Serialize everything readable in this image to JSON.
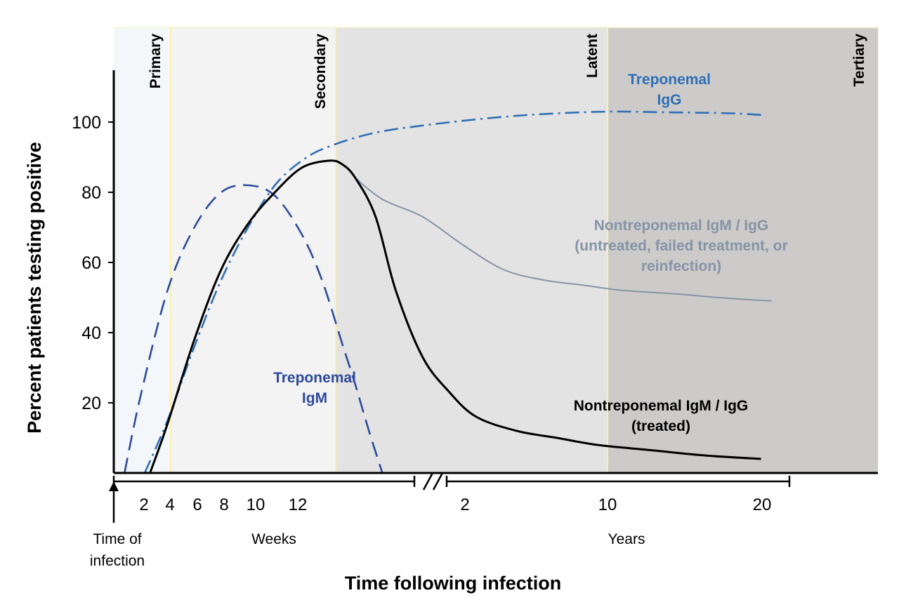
{
  "chart_data": {
    "type": "line",
    "ylabel": "Percent patients testing positive",
    "xlabel": "Time following infection",
    "y_ticks": [
      "20",
      "40",
      "60",
      "80",
      "100"
    ],
    "ylim": [
      0,
      115
    ],
    "x_axis": {
      "origin_label": "Time of infection",
      "weeks_label": "Weeks",
      "years_label": "Years",
      "week_ticks": [
        "2",
        "4",
        "6",
        "8",
        "10",
        "12"
      ],
      "year_ticks": [
        "2",
        "10",
        "20"
      ],
      "axis_break": true
    },
    "stages": [
      {
        "name": "Primary",
        "start_weeks": 0,
        "end_weeks": 4,
        "color": "#f4f7f9"
      },
      {
        "name": "Secondary",
        "start_weeks": 4,
        "end_weeks": 14,
        "color": "#f3f3f3"
      },
      {
        "name": "Latent",
        "start_weeks": 14,
        "end_years": 10,
        "color": "#e3e3e3"
      },
      {
        "name": "Tertiary",
        "start_years": 10,
        "end_years": 20,
        "color": "#cccbca"
      }
    ],
    "series": [
      {
        "name": "Treponemal IgM",
        "label_lines": [
          "Treponemal",
          "IgM"
        ],
        "color": "#2d4a9b",
        "style": "dashed",
        "points": [
          [
            0.8,
            0
          ],
          [
            2,
            22
          ],
          [
            4,
            52
          ],
          [
            6,
            70
          ],
          [
            8,
            80
          ],
          [
            10,
            82
          ],
          [
            12,
            79
          ],
          [
            14,
            68
          ],
          [
            15.5,
            55
          ],
          [
            17,
            37
          ],
          [
            18,
            25
          ],
          [
            19,
            12
          ],
          [
            20,
            0
          ]
        ]
      },
      {
        "name": "Treponemal IgG",
        "label_lines": [
          "Treponemal",
          "IgG"
        ],
        "color": "#2f6fb5",
        "style": "dashdot",
        "points": [
          [
            2.3,
            0
          ],
          [
            4,
            15
          ],
          [
            6,
            36
          ],
          [
            8,
            55
          ],
          [
            10,
            70
          ],
          [
            12,
            82
          ],
          [
            14,
            89
          ],
          [
            16,
            93
          ],
          [
            19.5,
            97
          ],
          [
            24,
            99.5
          ],
          [
            29,
            101.5
          ],
          [
            33,
            102.5
          ],
          [
            37,
            103
          ],
          [
            41,
            102.8
          ],
          [
            46,
            102.5
          ],
          [
            48.3,
            102
          ]
        ]
      },
      {
        "name": "Nontreponemal IgM / IgG (treated)",
        "label_lines": [
          "Nontreponemal IgM / IgG",
          "(treated)"
        ],
        "color": "#000000",
        "style": "solid",
        "points": [
          [
            2.7,
            0
          ],
          [
            4,
            14
          ],
          [
            6,
            38
          ],
          [
            8,
            58
          ],
          [
            10,
            71
          ],
          [
            12,
            80
          ],
          [
            14,
            87
          ],
          [
            16,
            89
          ],
          [
            17,
            88
          ],
          [
            18,
            84
          ],
          [
            19.5,
            73
          ],
          [
            21,
            52
          ],
          [
            23,
            33
          ],
          [
            25,
            23
          ],
          [
            27,
            16
          ],
          [
            30,
            12
          ],
          [
            33,
            10
          ],
          [
            36,
            8
          ],
          [
            40,
            6.5
          ],
          [
            44,
            5
          ],
          [
            48.2,
            4
          ]
        ]
      },
      {
        "name": "Nontreponemal IgM / IgG (untreated, failed treatment, or reinfection)",
        "label_lines": [
          "Nontreponemal IgM / IgG",
          "(untreated, failed treatment, or",
          "reinfection)"
        ],
        "color": "#8694a6",
        "style": "solid",
        "points": [
          [
            18,
            84
          ],
          [
            20,
            78
          ],
          [
            23,
            73
          ],
          [
            26,
            65
          ],
          [
            29,
            58
          ],
          [
            32,
            55
          ],
          [
            35,
            53.5
          ],
          [
            38,
            52
          ],
          [
            42,
            51
          ],
          [
            45,
            50
          ],
          [
            49,
            49
          ]
        ]
      }
    ]
  }
}
